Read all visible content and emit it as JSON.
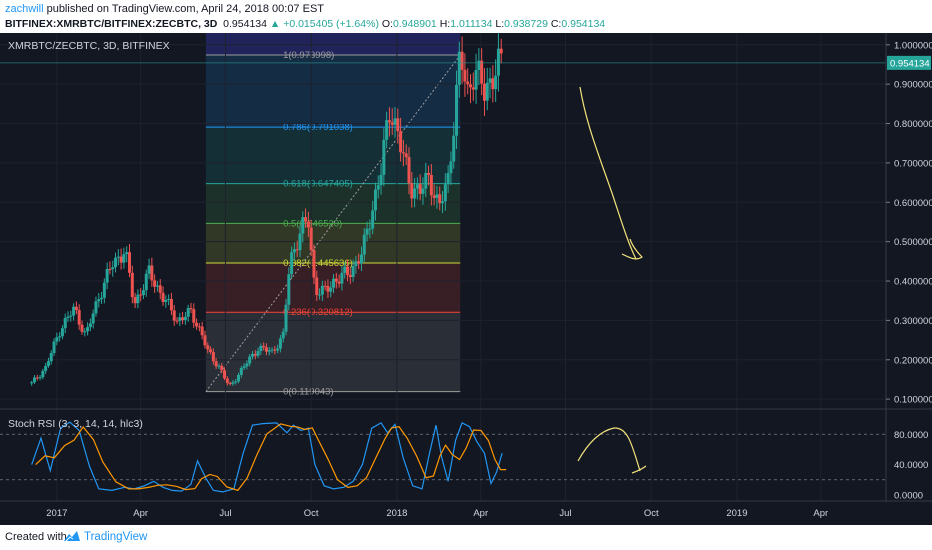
{
  "header": {
    "author": "zachwill",
    "published_text": "published on TradingView.com, April 24, 2018 00:07 EST",
    "symbol_full": "BITFINEX:XMRBTC/BITFINEX:ZECBTC, 3D",
    "last": "0.954134",
    "change": "▲ +0.015405 (+1.64%)",
    "o_label": "O:",
    "o_value": "0.948901",
    "h_label": "H:",
    "h_value": "1.011134",
    "l_label": "L:",
    "l_value": "0.938729",
    "c_label": "C:",
    "c_value": "0.954134"
  },
  "chart_title": "XMRBTC/ZECBTC, 3D, BITFINEX",
  "rsi_title": "Stoch RSI (3, 3, 14, 14, hlc3)",
  "footer": {
    "created_with": "Created with",
    "brand": "TradingView"
  },
  "colors": {
    "background": "#131722",
    "up": "#26a69a",
    "down": "#ef5350",
    "k_line": "#2196f3",
    "d_line": "#ff9800",
    "annotation": "#f3e27a",
    "price_tag": "#26a69a"
  },
  "chart_data": {
    "type": "candlestick",
    "price_axis": {
      "ticks": [
        "0.100000",
        "0.200000",
        "0.300000",
        "0.400000",
        "0.500000",
        "0.600000",
        "0.700000",
        "0.800000",
        "0.900000",
        "1.000000"
      ],
      "ylim": [
        0.08,
        1.03
      ],
      "current_price": "0.954134"
    },
    "x_axis": {
      "ticks": [
        "2017",
        "Apr",
        "Jul",
        "Oct",
        "2018",
        "Apr",
        "Jul",
        "Oct",
        "2019",
        "Apr"
      ],
      "start": "2016-11-01",
      "end": "2019-06-10"
    },
    "fib_levels": [
      {
        "label": "1(0.973998)",
        "value": 0.973998,
        "color": "#9e9e9e"
      },
      {
        "label": "0.786(0.791038)",
        "value": 0.791038,
        "color": "#2196f3"
      },
      {
        "label": "0.618(0.647405)",
        "value": 0.647405,
        "color": "#26a69a"
      },
      {
        "label": "0.5(0.546520)",
        "value": 0.54652,
        "color": "#4caf50"
      },
      {
        "label": "0.382(0.445636)",
        "value": 0.445636,
        "color": "#cddc39"
      },
      {
        "label": "0.236(0.320812)",
        "value": 0.320812,
        "color": "#f44336"
      },
      {
        "label": "0(0.119043)",
        "value": 0.119043,
        "color": "#9e9e9e"
      }
    ],
    "fib_range": {
      "start": "2017-06-10",
      "end": "2018-03-10"
    },
    "price_path": [
      [
        "2016-12-05",
        0.14
      ],
      [
        "2016-12-20",
        0.18
      ],
      [
        "2017-01-05",
        0.28
      ],
      [
        "2017-01-20",
        0.33
      ],
      [
        "2017-02-01",
        0.26
      ],
      [
        "2017-02-15",
        0.36
      ],
      [
        "2017-03-01",
        0.44
      ],
      [
        "2017-03-15",
        0.48
      ],
      [
        "2017-03-25",
        0.34
      ],
      [
        "2017-04-10",
        0.42
      ],
      [
        "2017-04-25",
        0.36
      ],
      [
        "2017-05-10",
        0.3
      ],
      [
        "2017-05-25",
        0.32
      ],
      [
        "2017-06-05",
        0.27
      ],
      [
        "2017-06-12",
        0.22
      ],
      [
        "2017-06-25",
        0.18
      ],
      [
        "2017-07-05",
        0.13
      ],
      [
        "2017-07-20",
        0.18
      ],
      [
        "2017-08-05",
        0.23
      ],
      [
        "2017-08-20",
        0.22
      ],
      [
        "2017-09-01",
        0.26
      ],
      [
        "2017-09-08",
        0.45
      ],
      [
        "2017-09-20",
        0.53
      ],
      [
        "2017-09-28",
        0.55
      ],
      [
        "2017-10-05",
        0.38
      ],
      [
        "2017-10-15",
        0.37
      ],
      [
        "2017-10-25",
        0.4
      ],
      [
        "2017-11-10",
        0.42
      ],
      [
        "2017-11-25",
        0.47
      ],
      [
        "2017-12-05",
        0.58
      ],
      [
        "2017-12-15",
        0.68
      ],
      [
        "2017-12-25",
        0.85
      ],
      [
        "2018-01-05",
        0.74
      ],
      [
        "2018-01-15",
        0.65
      ],
      [
        "2018-01-25",
        0.62
      ],
      [
        "2018-02-05",
        0.67
      ],
      [
        "2018-02-15",
        0.58
      ],
      [
        "2018-02-25",
        0.66
      ],
      [
        "2018-03-05",
        0.85
      ],
      [
        "2018-03-10",
        0.97
      ],
      [
        "2018-03-18",
        0.88
      ],
      [
        "2018-03-25",
        0.94
      ],
      [
        "2018-04-05",
        0.88
      ],
      [
        "2018-04-15",
        0.93
      ],
      [
        "2018-04-24",
        0.954
      ]
    ],
    "stoch_rsi": {
      "ticks": [
        "0.0000",
        "40.0000",
        "80.0000"
      ],
      "ylim": [
        -8,
        112
      ],
      "bands": [
        20,
        80
      ],
      "k_path": [
        [
          "2016-12-05",
          40
        ],
        [
          "2016-12-15",
          75
        ],
        [
          "2016-12-25",
          32
        ],
        [
          "2017-01-05",
          88
        ],
        [
          "2017-01-15",
          96
        ],
        [
          "2017-01-25",
          85
        ],
        [
          "2017-02-05",
          38
        ],
        [
          "2017-02-15",
          8
        ],
        [
          "2017-03-01",
          6
        ],
        [
          "2017-03-15",
          10
        ],
        [
          "2017-03-25",
          8
        ],
        [
          "2017-04-05",
          12
        ],
        [
          "2017-04-15",
          18
        ],
        [
          "2017-04-25",
          10
        ],
        [
          "2017-05-05",
          6
        ],
        [
          "2017-05-15",
          5
        ],
        [
          "2017-05-25",
          14
        ],
        [
          "2017-06-01",
          45
        ],
        [
          "2017-06-10",
          22
        ],
        [
          "2017-06-18",
          6
        ],
        [
          "2017-06-28",
          4
        ],
        [
          "2017-07-10",
          8
        ],
        [
          "2017-07-20",
          55
        ],
        [
          "2017-07-30",
          92
        ],
        [
          "2017-08-10",
          94
        ],
        [
          "2017-08-25",
          95
        ],
        [
          "2017-09-05",
          82
        ],
        [
          "2017-09-12",
          92
        ],
        [
          "2017-09-20",
          85
        ],
        [
          "2017-09-28",
          88
        ],
        [
          "2017-10-05",
          40
        ],
        [
          "2017-10-15",
          12
        ],
        [
          "2017-10-25",
          8
        ],
        [
          "2017-11-05",
          10
        ],
        [
          "2017-11-15",
          18
        ],
        [
          "2017-11-25",
          40
        ],
        [
          "2017-12-05",
          88
        ],
        [
          "2017-12-15",
          95
        ],
        [
          "2017-12-22",
          82
        ],
        [
          "2017-12-30",
          93
        ],
        [
          "2018-01-08",
          48
        ],
        [
          "2018-01-18",
          12
        ],
        [
          "2018-01-28",
          8
        ],
        [
          "2018-02-05",
          55
        ],
        [
          "2018-02-12",
          92
        ],
        [
          "2018-02-18",
          50
        ],
        [
          "2018-02-25",
          18
        ],
        [
          "2018-03-05",
          72
        ],
        [
          "2018-03-12",
          95
        ],
        [
          "2018-03-20",
          90
        ],
        [
          "2018-03-28",
          70
        ],
        [
          "2018-04-05",
          55
        ],
        [
          "2018-04-12",
          15
        ],
        [
          "2018-04-18",
          30
        ],
        [
          "2018-04-24",
          55
        ]
      ]
    }
  }
}
